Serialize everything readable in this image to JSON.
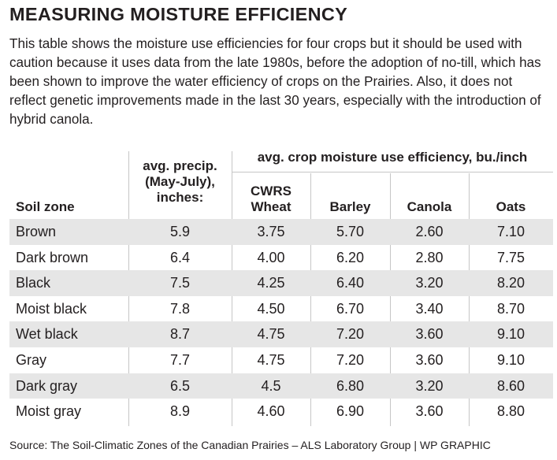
{
  "title": "MEASURING MOISTURE EFFICIENCY",
  "intro": "This table shows the moisture use efficiencies for four crops but it should be used with caution because it uses data from the late 1980s, before the adoption of no-till, which has been shown to improve the water efficiency of crops on the Prairies. Also, it does not reflect genetic improvements made in the last 30 years, especially with the introduction of hybrid canola.",
  "table": {
    "group_header": "avg. crop moisture use efficiency, bu./inch",
    "headers": {
      "zone": "Soil zone",
      "precip": [
        "avg. precip.",
        "(May-July),",
        "inches:"
      ],
      "wheat": [
        "CWRS",
        "Wheat"
      ],
      "barley": "Barley",
      "canola": "Canola",
      "oats": "Oats"
    },
    "rows": [
      {
        "zone": "Brown",
        "precip": "5.9",
        "wheat": "3.75",
        "barley": "5.70",
        "canola": "2.60",
        "oats": "7.10"
      },
      {
        "zone": "Dark brown",
        "precip": "6.4",
        "wheat": "4.00",
        "barley": "6.20",
        "canola": "2.80",
        "oats": "7.75"
      },
      {
        "zone": "Black",
        "precip": "7.5",
        "wheat": "4.25",
        "barley": "6.40",
        "canola": "3.20",
        "oats": "8.20"
      },
      {
        "zone": "Moist black",
        "precip": "7.8",
        "wheat": "4.50",
        "barley": "6.70",
        "canola": "3.40",
        "oats": "8.70"
      },
      {
        "zone": "Wet black",
        "precip": "8.7",
        "wheat": "4.75",
        "barley": "7.20",
        "canola": "3.60",
        "oats": "9.10"
      },
      {
        "zone": "Gray",
        "precip": "7.7",
        "wheat": "4.75",
        "barley": "7.20",
        "canola": "3.60",
        "oats": "9.10"
      },
      {
        "zone": "Dark gray",
        "precip": "6.5",
        "wheat": "4.5",
        "barley": "6.80",
        "canola": "3.20",
        "oats": "8.60"
      },
      {
        "zone": "Moist gray",
        "precip": "8.9",
        "wheat": "4.60",
        "barley": "6.90",
        "canola": "3.60",
        "oats": "8.80"
      }
    ]
  },
  "source": "Source:  The Soil-Climatic Zones of the Canadian Prairies – ALS Laboratory Group  |  WP GRAPHIC",
  "colors": {
    "row_shade": "#e6e6e6",
    "rule": "#c6c6c6",
    "text": "#231f20"
  }
}
